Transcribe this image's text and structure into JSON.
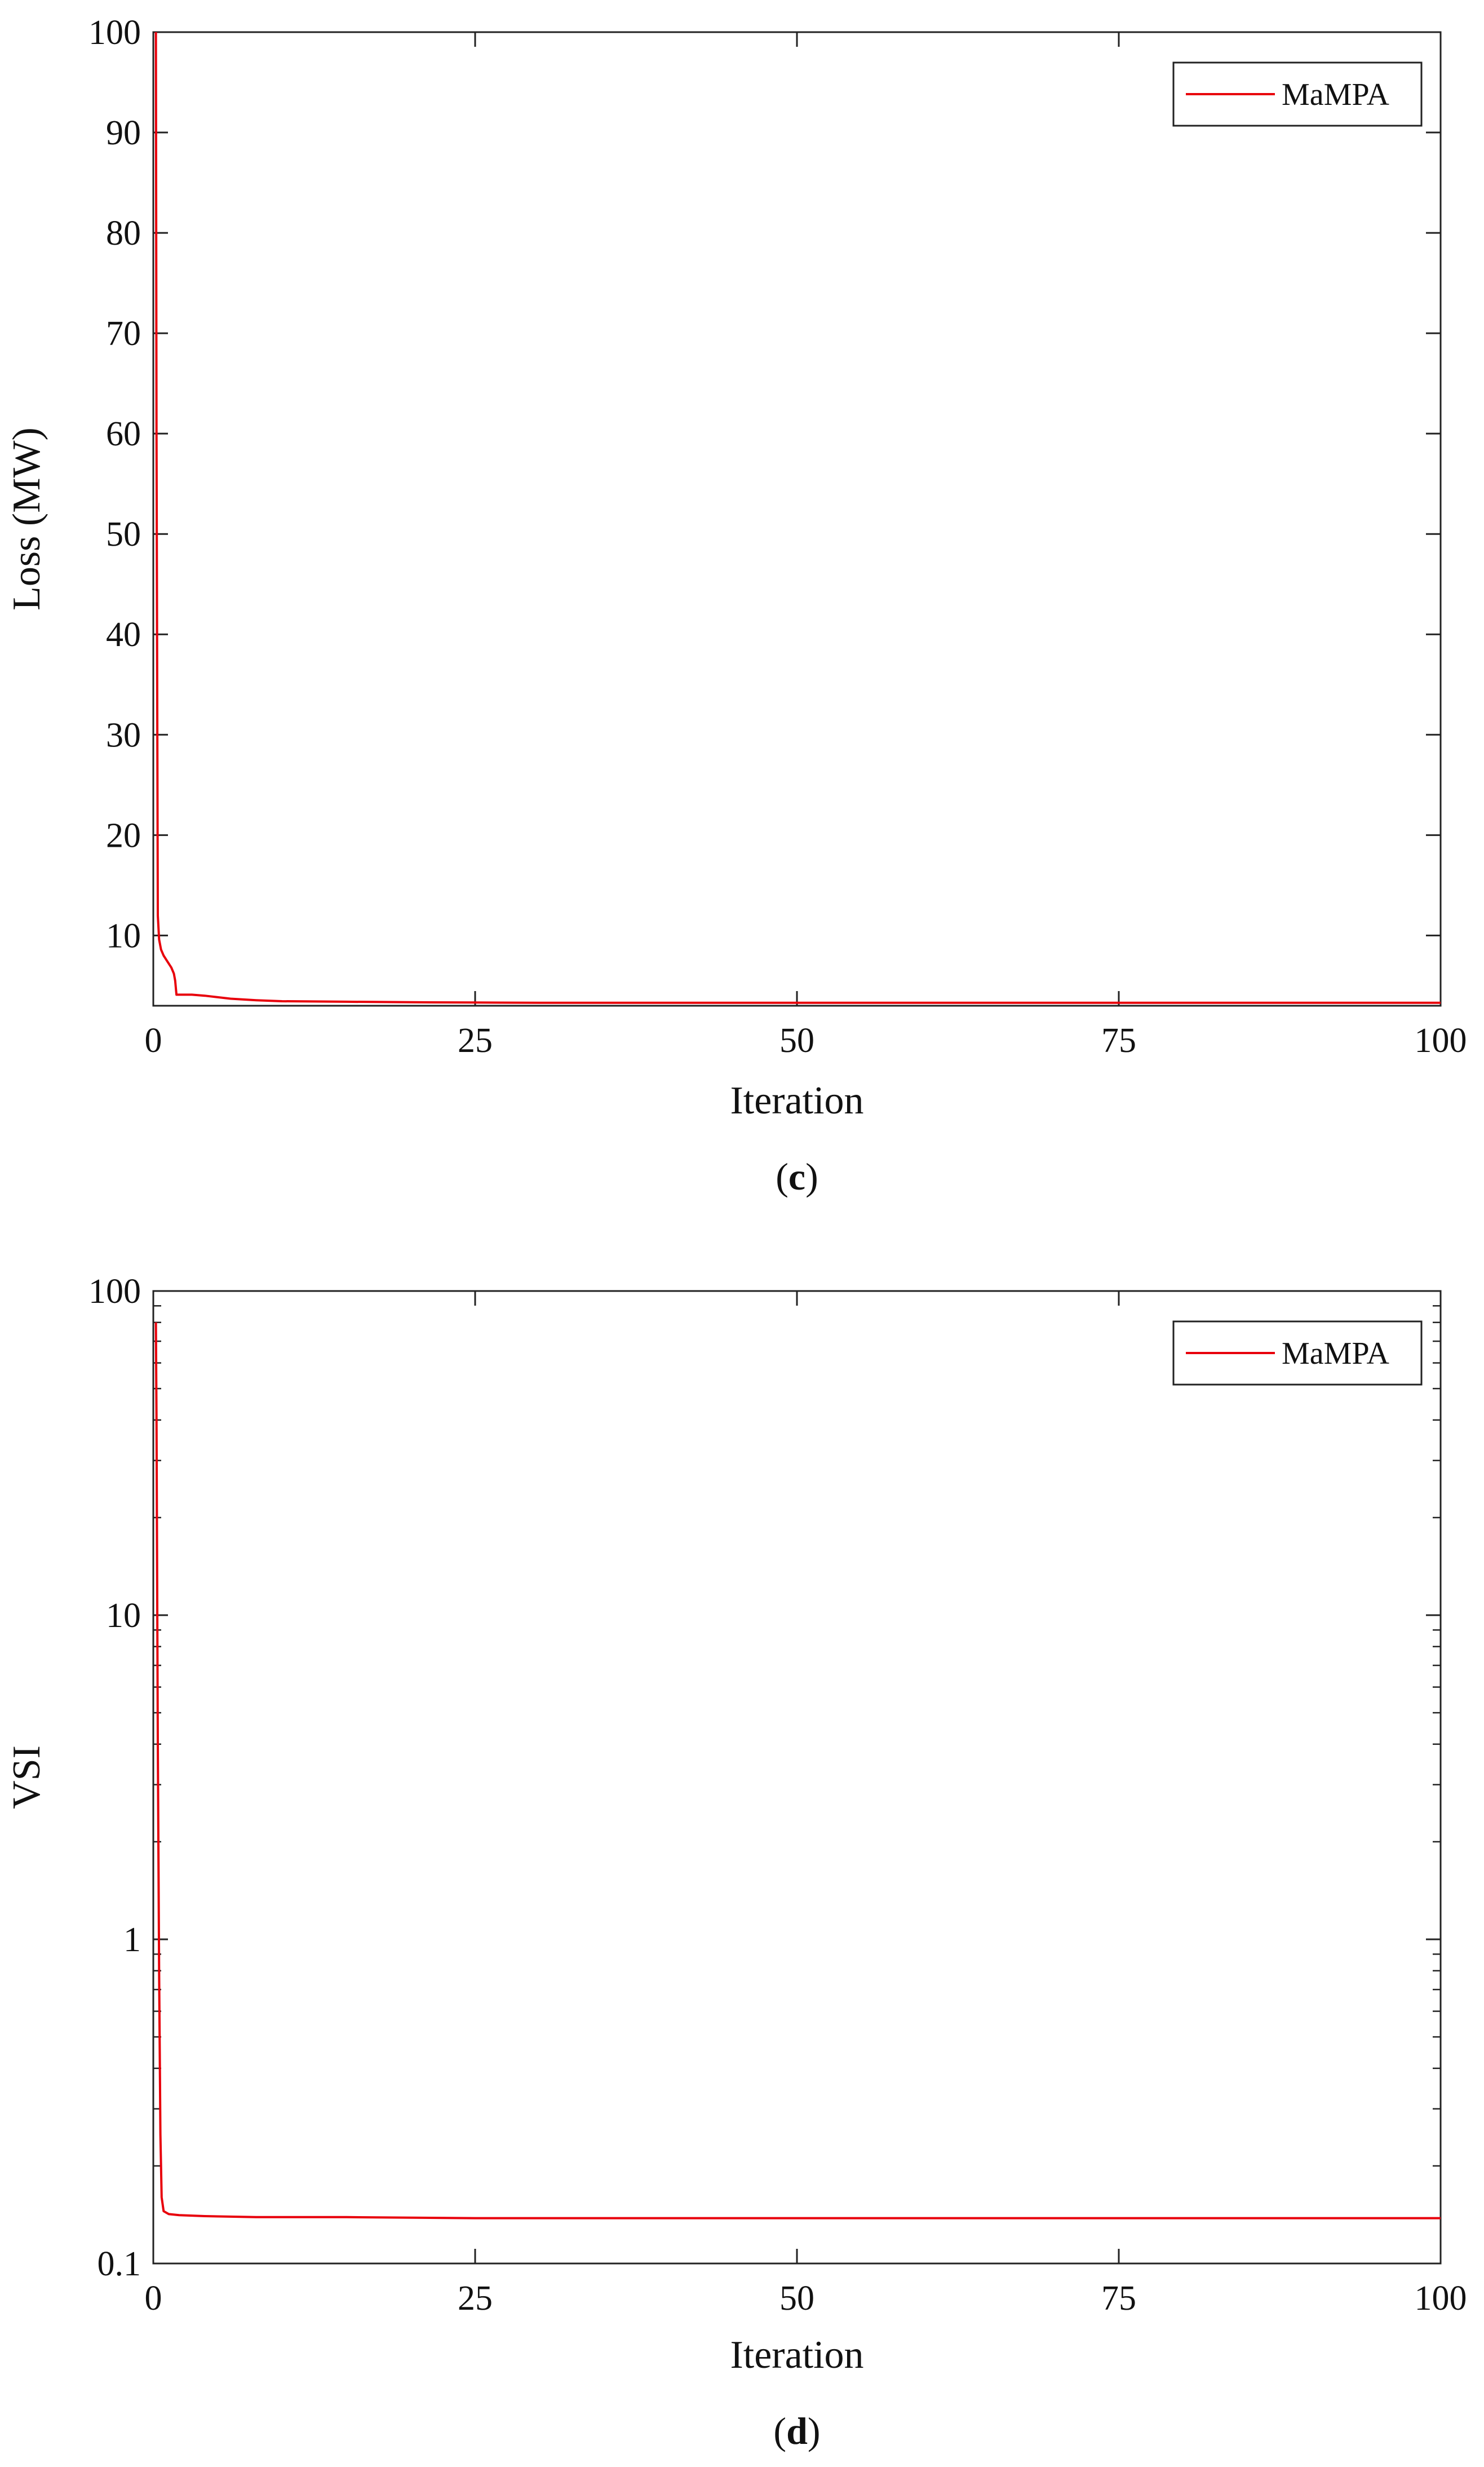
{
  "line_color": "#e8000b",
  "chart_data": [
    {
      "type": "line",
      "caption_letter": "c",
      "xlabel": "Iteration",
      "ylabel": "Loss (MW)",
      "xlim": [
        0,
        100
      ],
      "ylim": [
        3,
        100
      ],
      "yscale": "linear",
      "x_ticks": [
        0,
        25,
        50,
        75,
        100
      ],
      "y_ticks": [
        10,
        20,
        30,
        40,
        50,
        60,
        70,
        80,
        90,
        100
      ],
      "grid": false,
      "legend_position": "top-right",
      "series": [
        {
          "name": "MaMPA",
          "x": [
            0.2,
            0.25,
            0.35,
            0.45,
            0.6,
            0.8,
            1.0,
            1.2,
            1.4,
            1.6,
            1.7,
            1.8,
            3,
            4,
            6,
            8,
            10,
            15,
            20,
            25,
            30,
            40,
            50,
            60,
            75,
            90,
            100
          ],
          "values": [
            100,
            60,
            12,
            9.6,
            8.6,
            8.0,
            7.6,
            7.2,
            6.8,
            6.2,
            5.5,
            4.1,
            4.1,
            4.0,
            3.7,
            3.55,
            3.45,
            3.4,
            3.35,
            3.32,
            3.3,
            3.3,
            3.3,
            3.3,
            3.3,
            3.3,
            3.3
          ]
        }
      ]
    },
    {
      "type": "line",
      "caption_letter": "d",
      "xlabel": "Iteration",
      "ylabel": "VSI",
      "xlim": [
        0,
        100
      ],
      "ylim": [
        0.1,
        100
      ],
      "yscale": "log",
      "x_ticks": [
        0,
        25,
        50,
        75,
        100
      ],
      "y_ticks": [
        0.1,
        1,
        10,
        100
      ],
      "grid": false,
      "legend_position": "top-right",
      "series": [
        {
          "name": "MaMPA",
          "x": [
            0.2,
            0.25,
            0.35,
            0.45,
            0.55,
            0.65,
            0.8,
            1.2,
            2,
            4,
            8,
            15,
            25,
            40,
            60,
            80,
            100
          ],
          "values": [
            80,
            40,
            4,
            0.8,
            0.25,
            0.16,
            0.145,
            0.142,
            0.141,
            0.14,
            0.139,
            0.139,
            0.138,
            0.138,
            0.138,
            0.138,
            0.138
          ]
        }
      ]
    }
  ]
}
